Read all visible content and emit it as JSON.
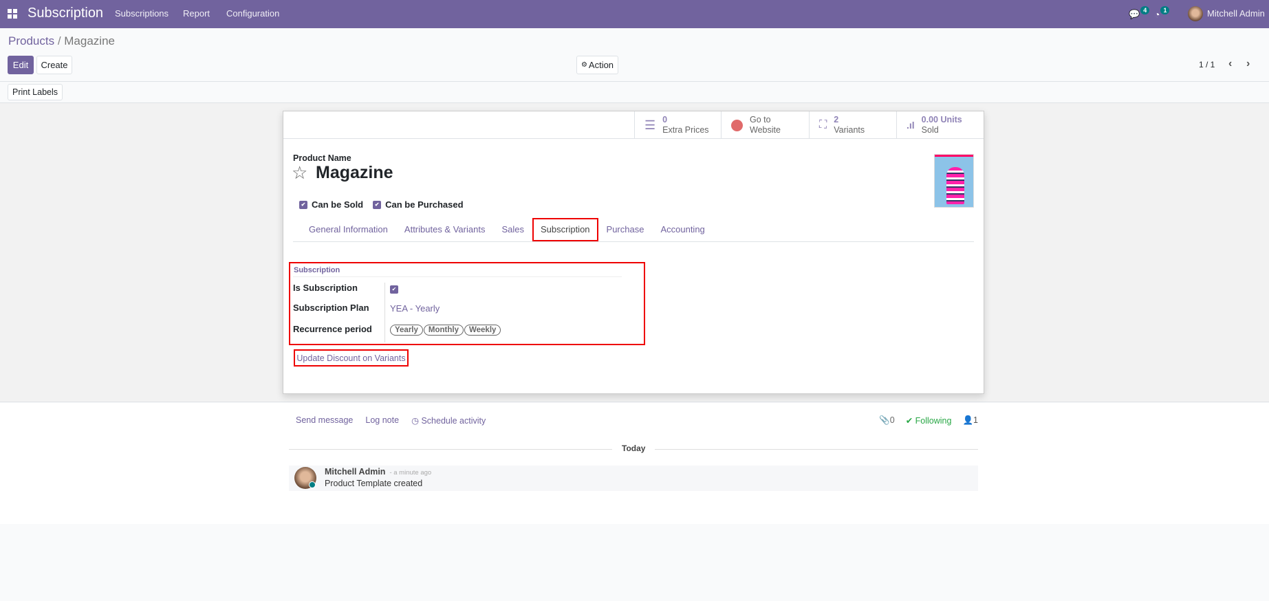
{
  "topbar": {
    "app_title": "Subscription",
    "menus": [
      "Subscriptions",
      "Report",
      "Configuration"
    ],
    "messages_count": "4",
    "activities_count": "1",
    "user": "Mitchell Admin"
  },
  "breadcrumb": {
    "parent": "Products",
    "current": "Magazine"
  },
  "toolbar": {
    "edit": "Edit",
    "create": "Create",
    "action": "Action",
    "pager": "1 / 1",
    "print_labels": "Print Labels"
  },
  "stats": [
    {
      "value": "0",
      "label": "Extra Prices"
    },
    {
      "value": "Go to",
      "label": "Website"
    },
    {
      "value": "2",
      "label": "Variants"
    },
    {
      "value": "0.00 Units",
      "label": "Sold"
    }
  ],
  "product": {
    "name_label": "Product Name",
    "name": "Magazine",
    "can_be_sold": "Can be Sold",
    "can_be_purchased": "Can be Purchased"
  },
  "tabs": [
    "General Information",
    "Attributes & Variants",
    "Sales",
    "Subscription",
    "Purchase",
    "Accounting"
  ],
  "active_tab": "Subscription",
  "subscription": {
    "header": "Subscription",
    "is_subscription_label": "Is Subscription",
    "is_subscription": true,
    "plan_label": "Subscription Plan",
    "plan": "YEA - Yearly",
    "recurrence_label": "Recurrence period",
    "recurrence": [
      "Yearly",
      "Monthly",
      "Weekly"
    ],
    "update_button": "Update Discount on Variants"
  },
  "chatter": {
    "send_message": "Send message",
    "log_note": "Log note",
    "schedule_activity": "Schedule activity",
    "attachments": "0",
    "following": "Following",
    "followers": "1",
    "date_separator": "Today",
    "message": {
      "author": "Mitchell Admin",
      "time": "- a minute ago",
      "body": "Product Template created"
    }
  },
  "colors": {
    "brand": "#71639e",
    "highlight": "#ee0000",
    "following": "#28a745"
  }
}
